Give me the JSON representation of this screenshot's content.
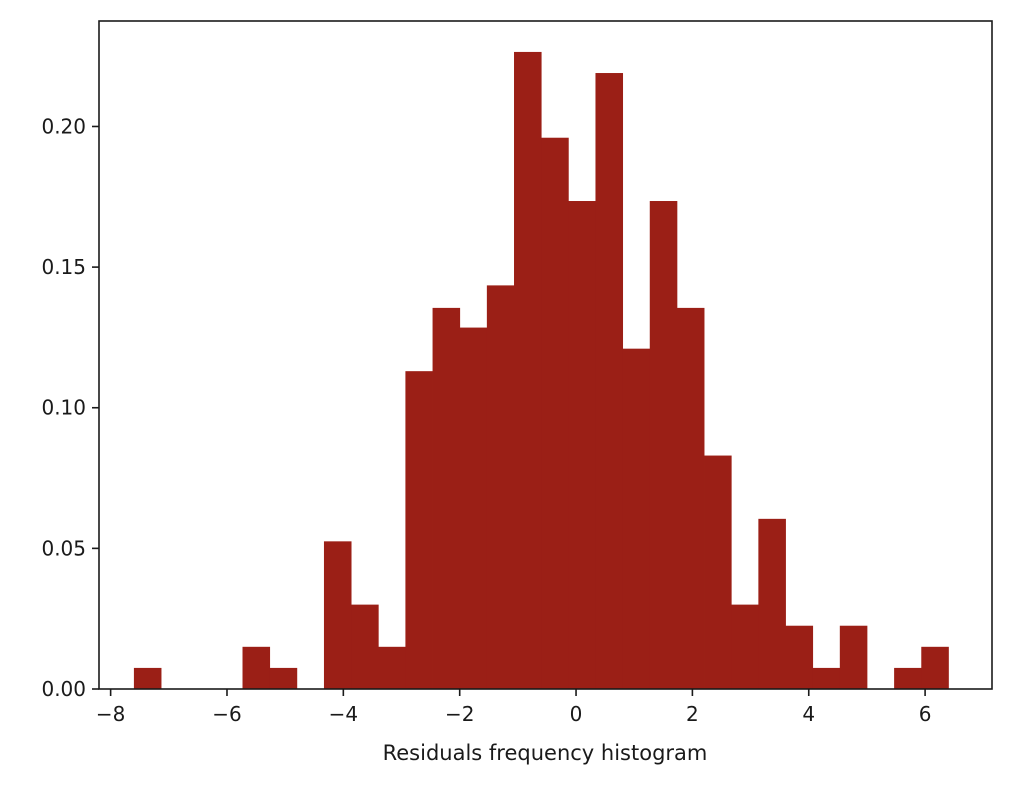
{
  "chart_data": {
    "type": "bar",
    "title": "",
    "xlabel": "Residuals frequency histogram",
    "ylabel": "",
    "color": "#9b1f16",
    "xlim": [
      -8.2,
      7.15
    ],
    "ylim": [
      0,
      0.2375
    ],
    "grid": false,
    "legend": "none",
    "xticks": [
      -8,
      -6,
      -4,
      -2,
      0,
      2,
      4,
      6
    ],
    "xtick_labels": [
      "−8",
      "−6",
      "−4",
      "−2",
      "0",
      "2",
      "4",
      "6"
    ],
    "yticks": [
      0,
      0.05,
      0.1,
      0.15,
      0.2
    ],
    "ytick_labels": [
      "0.00",
      "0.05",
      "0.10",
      "0.15",
      "0.20"
    ],
    "bin_start": -7.6,
    "bin_width": 0.4667,
    "values": [
      0.0075,
      0,
      0,
      0,
      0.015,
      0.0075,
      0,
      0.0525,
      0.03,
      0.015,
      0.113,
      0.1355,
      0.1285,
      0.1435,
      0.2265,
      0.196,
      0.1735,
      0.219,
      0.121,
      0.1735,
      0.1355,
      0.083,
      0.03,
      0.0605,
      0.0225,
      0.0075,
      0.0225,
      0,
      0.0075,
      0.015
    ]
  }
}
